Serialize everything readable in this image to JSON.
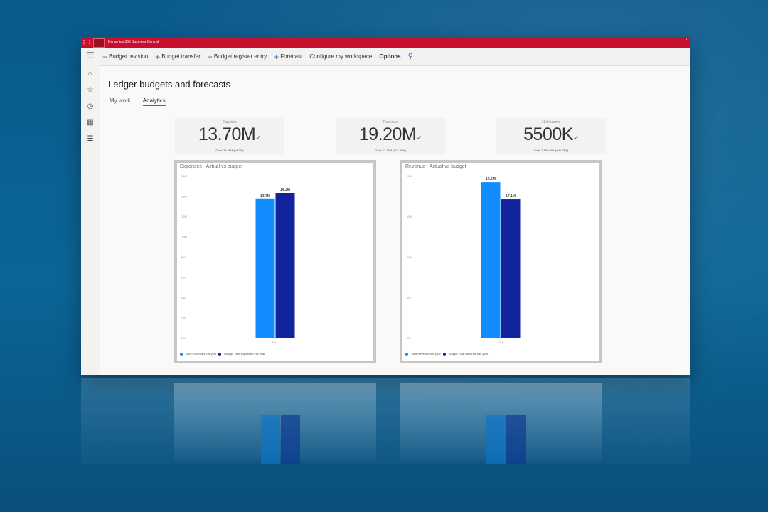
{
  "app": {
    "title": "Dynamics 365 Business Central"
  },
  "topbar": {
    "actions": [
      {
        "label": "Budget revision",
        "icon": "plus-icon"
      },
      {
        "label": "Budget transfer",
        "icon": "plus-icon"
      },
      {
        "label": "Budget register entry",
        "icon": "plus-icon"
      },
      {
        "label": "Forecast",
        "icon": "plus-icon"
      },
      {
        "label": "Configure my workspace"
      },
      {
        "label": "Options"
      }
    ]
  },
  "sidenav": {
    "icons": [
      "home-icon",
      "star-icon",
      "clock-icon",
      "table-icon",
      "list-icon"
    ]
  },
  "page": {
    "title": "Ledger budgets and forecasts",
    "tabs": [
      {
        "label": "My work",
        "active": false
      },
      {
        "label": "Analytics",
        "active": true
      }
    ]
  },
  "kpis": [
    {
      "label": "Expense",
      "value": "13.70M",
      "goal": "Goal: 14.30M (+4.2%)"
    },
    {
      "label": "Revenue",
      "value": "19.20M",
      "goal": "Goal: 17.10M (+12.28%)"
    },
    {
      "label": "Net income",
      "value": "5500K",
      "goal": "Goal: 2,800.00K (+96.43%)"
    }
  ],
  "colors": {
    "actual": "#118dff",
    "budget": "#12239e",
    "accent": "#c8102e"
  },
  "chart_data": [
    {
      "type": "bar",
      "title": "Expenses - Actual vs budget",
      "categories": [
        "LCY"
      ],
      "series": [
        {
          "name": "Total Expenses this year",
          "values": [
            13.7
          ],
          "label": "13.7M"
        },
        {
          "name": "Budget Total Expenses this year",
          "values": [
            14.3
          ],
          "label": "14.3M"
        }
      ],
      "ylim": [
        0,
        16
      ],
      "yticks": [
        "16M",
        "14M",
        "12M",
        "10M",
        "8M",
        "6M",
        "4M",
        "2M",
        "0M"
      ],
      "legend": "bottom-left"
    },
    {
      "type": "bar",
      "title": "Revenue - Actual vs budget",
      "categories": [
        "LCY"
      ],
      "series": [
        {
          "name": "Total Revenue this year",
          "values": [
            19.2
          ],
          "label": "19.2M"
        },
        {
          "name": "Budget Total Revenue this year",
          "values": [
            17.1
          ],
          "label": "17.1M"
        }
      ],
      "ylim": [
        0,
        20
      ],
      "yticks": [
        "20M",
        "15M",
        "10M",
        "5M",
        "0M"
      ],
      "legend": "bottom-left"
    }
  ]
}
